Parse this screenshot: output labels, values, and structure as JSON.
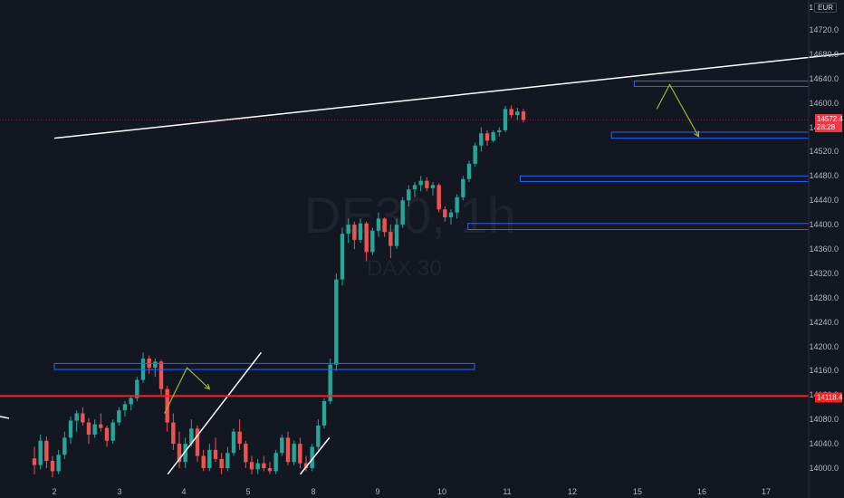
{
  "app": {
    "watermark_symbol": "DE30, 1h",
    "watermark_name": "DAX 30",
    "scale_label": "1",
    "currency_label": "EUR",
    "last_price_label": "14572.4",
    "countdown_label": "28:28",
    "level_label": "14118.4"
  },
  "colors": {
    "background": "#131722",
    "up_candle": "#26a69a",
    "down_candle": "#ef5350",
    "zone_border": "#2962ff",
    "trendline": "#ffffff",
    "level_line": "#ff1e1e",
    "arrow": "#9bb534"
  },
  "chart_data": {
    "type": "candlestick",
    "y_axis_ticks": [
      "14720.0",
      "14680.0",
      "14640.0",
      "14600.0",
      "14560.0",
      "14520.0",
      "14480.0",
      "14440.0",
      "14400.0",
      "14360.0",
      "14320.0",
      "14280.0",
      "14240.0",
      "14200.0",
      "14160.0",
      "14120.0",
      "14080.0",
      "14040.0",
      "14000.0"
    ],
    "x_axis_ticks": [
      "2",
      "3",
      "4",
      "5",
      "8",
      "9",
      "10",
      "11",
      "12",
      "15",
      "16",
      "17"
    ],
    "last_price": 14572.4,
    "horizontal_level": 14118.4,
    "zones": [
      {
        "x_from": 0.0,
        "x_to": 6.5,
        "y_low": 14162,
        "y_high": 14172
      },
      {
        "x_from": 6.4,
        "x_to": 13.0,
        "y_low": 14392,
        "y_high": 14402
      },
      {
        "x_from": 7.2,
        "x_to": 13.0,
        "y_low": 14471,
        "y_high": 14480
      },
      {
        "x_from": 8.6,
        "x_to": 13.0,
        "y_low": 14542,
        "y_high": 14552
      },
      {
        "x_from": 8.95,
        "x_to": 13.0,
        "y_low": 14627,
        "y_high": 14636
      }
    ],
    "trendlines": [
      {
        "x1": 0.0,
        "y1": 14542,
        "x2": 13.0,
        "y2": 14690
      },
      {
        "x1": 1.75,
        "y1": 13990,
        "x2": 3.2,
        "y2": 14190
      },
      {
        "x1": 3.8,
        "y1": 13990,
        "x2": 4.25,
        "y2": 14050
      }
    ],
    "arrows": [
      {
        "points": [
          [
            1.7,
            14090
          ],
          [
            2.05,
            14165
          ],
          [
            2.4,
            14130
          ]
        ]
      },
      {
        "points": [
          [
            9.3,
            14590
          ],
          [
            9.5,
            14630
          ],
          [
            9.95,
            14545
          ]
        ]
      }
    ],
    "candles": [
      {
        "o": 14016,
        "h": 14035,
        "l": 13990,
        "c": 14005
      },
      {
        "o": 14005,
        "h": 14055,
        "l": 13998,
        "c": 14045
      },
      {
        "o": 14045,
        "h": 14052,
        "l": 14000,
        "c": 14012
      },
      {
        "o": 14012,
        "h": 14020,
        "l": 13985,
        "c": 13995
      },
      {
        "o": 13995,
        "h": 14030,
        "l": 13990,
        "c": 14022
      },
      {
        "o": 14022,
        "h": 14060,
        "l": 14015,
        "c": 14050
      },
      {
        "o": 14050,
        "h": 14085,
        "l": 14040,
        "c": 14078
      },
      {
        "o": 14078,
        "h": 14095,
        "l": 14060,
        "c": 14090
      },
      {
        "o": 14090,
        "h": 14100,
        "l": 14070,
        "c": 14075
      },
      {
        "o": 14075,
        "h": 14082,
        "l": 14040,
        "c": 14055
      },
      {
        "o": 14055,
        "h": 14080,
        "l": 14050,
        "c": 14072
      },
      {
        "o": 14072,
        "h": 14090,
        "l": 14060,
        "c": 14066
      },
      {
        "o": 14066,
        "h": 14070,
        "l": 14035,
        "c": 14045
      },
      {
        "o": 14045,
        "h": 14080,
        "l": 14040,
        "c": 14075
      },
      {
        "o": 14075,
        "h": 14100,
        "l": 14070,
        "c": 14095
      },
      {
        "o": 14095,
        "h": 14110,
        "l": 14085,
        "c": 14105
      },
      {
        "o": 14105,
        "h": 14120,
        "l": 14095,
        "c": 14115
      },
      {
        "o": 14115,
        "h": 14150,
        "l": 14110,
        "c": 14145
      },
      {
        "o": 14145,
        "h": 14190,
        "l": 14140,
        "c": 14180
      },
      {
        "o": 14180,
        "h": 14185,
        "l": 14155,
        "c": 14165
      },
      {
        "o": 14165,
        "h": 14180,
        "l": 14150,
        "c": 14175
      },
      {
        "o": 14175,
        "h": 14178,
        "l": 14120,
        "c": 14130
      },
      {
        "o": 14130,
        "h": 14135,
        "l": 14060,
        "c": 14075
      },
      {
        "o": 14075,
        "h": 14090,
        "l": 14030,
        "c": 14040
      },
      {
        "o": 14040,
        "h": 14060,
        "l": 14000,
        "c": 14010
      },
      {
        "o": 14010,
        "h": 14050,
        "l": 14000,
        "c": 14040
      },
      {
        "o": 14040,
        "h": 14080,
        "l": 14035,
        "c": 14065
      },
      {
        "o": 14065,
        "h": 14070,
        "l": 14010,
        "c": 14020
      },
      {
        "o": 14020,
        "h": 14030,
        "l": 13995,
        "c": 14000
      },
      {
        "o": 14000,
        "h": 14040,
        "l": 13995,
        "c": 14030
      },
      {
        "o": 14030,
        "h": 14050,
        "l": 14010,
        "c": 14015
      },
      {
        "o": 14015,
        "h": 14025,
        "l": 13990,
        "c": 14000
      },
      {
        "o": 14000,
        "h": 14035,
        "l": 13995,
        "c": 14025
      },
      {
        "o": 14025,
        "h": 14065,
        "l": 14020,
        "c": 14060
      },
      {
        "o": 14060,
        "h": 14080,
        "l": 14030,
        "c": 14040
      },
      {
        "o": 14040,
        "h": 14045,
        "l": 14000,
        "c": 14010
      },
      {
        "o": 14010,
        "h": 14020,
        "l": 13990,
        "c": 13998
      },
      {
        "o": 13998,
        "h": 14015,
        "l": 13990,
        "c": 14008
      },
      {
        "o": 14008,
        "h": 14020,
        "l": 13995,
        "c": 14000
      },
      {
        "o": 14000,
        "h": 14010,
        "l": 13990,
        "c": 13995
      },
      {
        "o": 13995,
        "h": 14030,
        "l": 13990,
        "c": 14025
      },
      {
        "o": 14025,
        "h": 14055,
        "l": 14020,
        "c": 14050
      },
      {
        "o": 14050,
        "h": 14060,
        "l": 14005,
        "c": 14010
      },
      {
        "o": 14010,
        "h": 14045,
        "l": 14005,
        "c": 14040
      },
      {
        "o": 14040,
        "h": 14050,
        "l": 14000,
        "c": 14008
      },
      {
        "o": 14008,
        "h": 14020,
        "l": 13995,
        "c": 14000
      },
      {
        "o": 14000,
        "h": 14040,
        "l": 13995,
        "c": 14035
      },
      {
        "o": 14035,
        "h": 14080,
        "l": 14030,
        "c": 14070
      },
      {
        "o": 14070,
        "h": 14115,
        "l": 14065,
        "c": 14110
      },
      {
        "o": 14110,
        "h": 14180,
        "l": 14105,
        "c": 14170
      },
      {
        "o": 14170,
        "h": 14320,
        "l": 14160,
        "c": 14310
      },
      {
        "o": 14310,
        "h": 14395,
        "l": 14300,
        "c": 14385
      },
      {
        "o": 14385,
        "h": 14410,
        "l": 14370,
        "c": 14400
      },
      {
        "o": 14400,
        "h": 14405,
        "l": 14360,
        "c": 14375
      },
      {
        "o": 14375,
        "h": 14410,
        "l": 14370,
        "c": 14402
      },
      {
        "o": 14402,
        "h": 14405,
        "l": 14340,
        "c": 14355
      },
      {
        "o": 14355,
        "h": 14395,
        "l": 14350,
        "c": 14390
      },
      {
        "o": 14390,
        "h": 14420,
        "l": 14380,
        "c": 14410
      },
      {
        "o": 14410,
        "h": 14412,
        "l": 14380,
        "c": 14388
      },
      {
        "o": 14388,
        "h": 14400,
        "l": 14345,
        "c": 14365
      },
      {
        "o": 14365,
        "h": 14410,
        "l": 14360,
        "c": 14400
      },
      {
        "o": 14400,
        "h": 14445,
        "l": 14395,
        "c": 14440
      },
      {
        "o": 14440,
        "h": 14465,
        "l": 14430,
        "c": 14458
      },
      {
        "o": 14458,
        "h": 14470,
        "l": 14445,
        "c": 14465
      },
      {
        "o": 14465,
        "h": 14480,
        "l": 14455,
        "c": 14472
      },
      {
        "o": 14472,
        "h": 14478,
        "l": 14455,
        "c": 14460
      },
      {
        "o": 14460,
        "h": 14470,
        "l": 14448,
        "c": 14465
      },
      {
        "o": 14465,
        "h": 14468,
        "l": 14420,
        "c": 14425
      },
      {
        "o": 14425,
        "h": 14430,
        "l": 14405,
        "c": 14412
      },
      {
        "o": 14412,
        "h": 14425,
        "l": 14400,
        "c": 14420
      },
      {
        "o": 14420,
        "h": 14450,
        "l": 14410,
        "c": 14445
      },
      {
        "o": 14445,
        "h": 14480,
        "l": 14440,
        "c": 14475
      },
      {
        "o": 14475,
        "h": 14505,
        "l": 14470,
        "c": 14500
      },
      {
        "o": 14500,
        "h": 14535,
        "l": 14495,
        "c": 14530
      },
      {
        "o": 14530,
        "h": 14560,
        "l": 14520,
        "c": 14550
      },
      {
        "o": 14550,
        "h": 14555,
        "l": 14530,
        "c": 14538
      },
      {
        "o": 14538,
        "h": 14555,
        "l": 14535,
        "c": 14552
      },
      {
        "o": 14552,
        "h": 14560,
        "l": 14545,
        "c": 14555
      },
      {
        "o": 14555,
        "h": 14595,
        "l": 14552,
        "c": 14590
      },
      {
        "o": 14590,
        "h": 14596,
        "l": 14575,
        "c": 14580
      },
      {
        "o": 14580,
        "h": 14592,
        "l": 14572,
        "c": 14586
      },
      {
        "o": 14586,
        "h": 14590,
        "l": 14568,
        "c": 14572
      }
    ]
  }
}
